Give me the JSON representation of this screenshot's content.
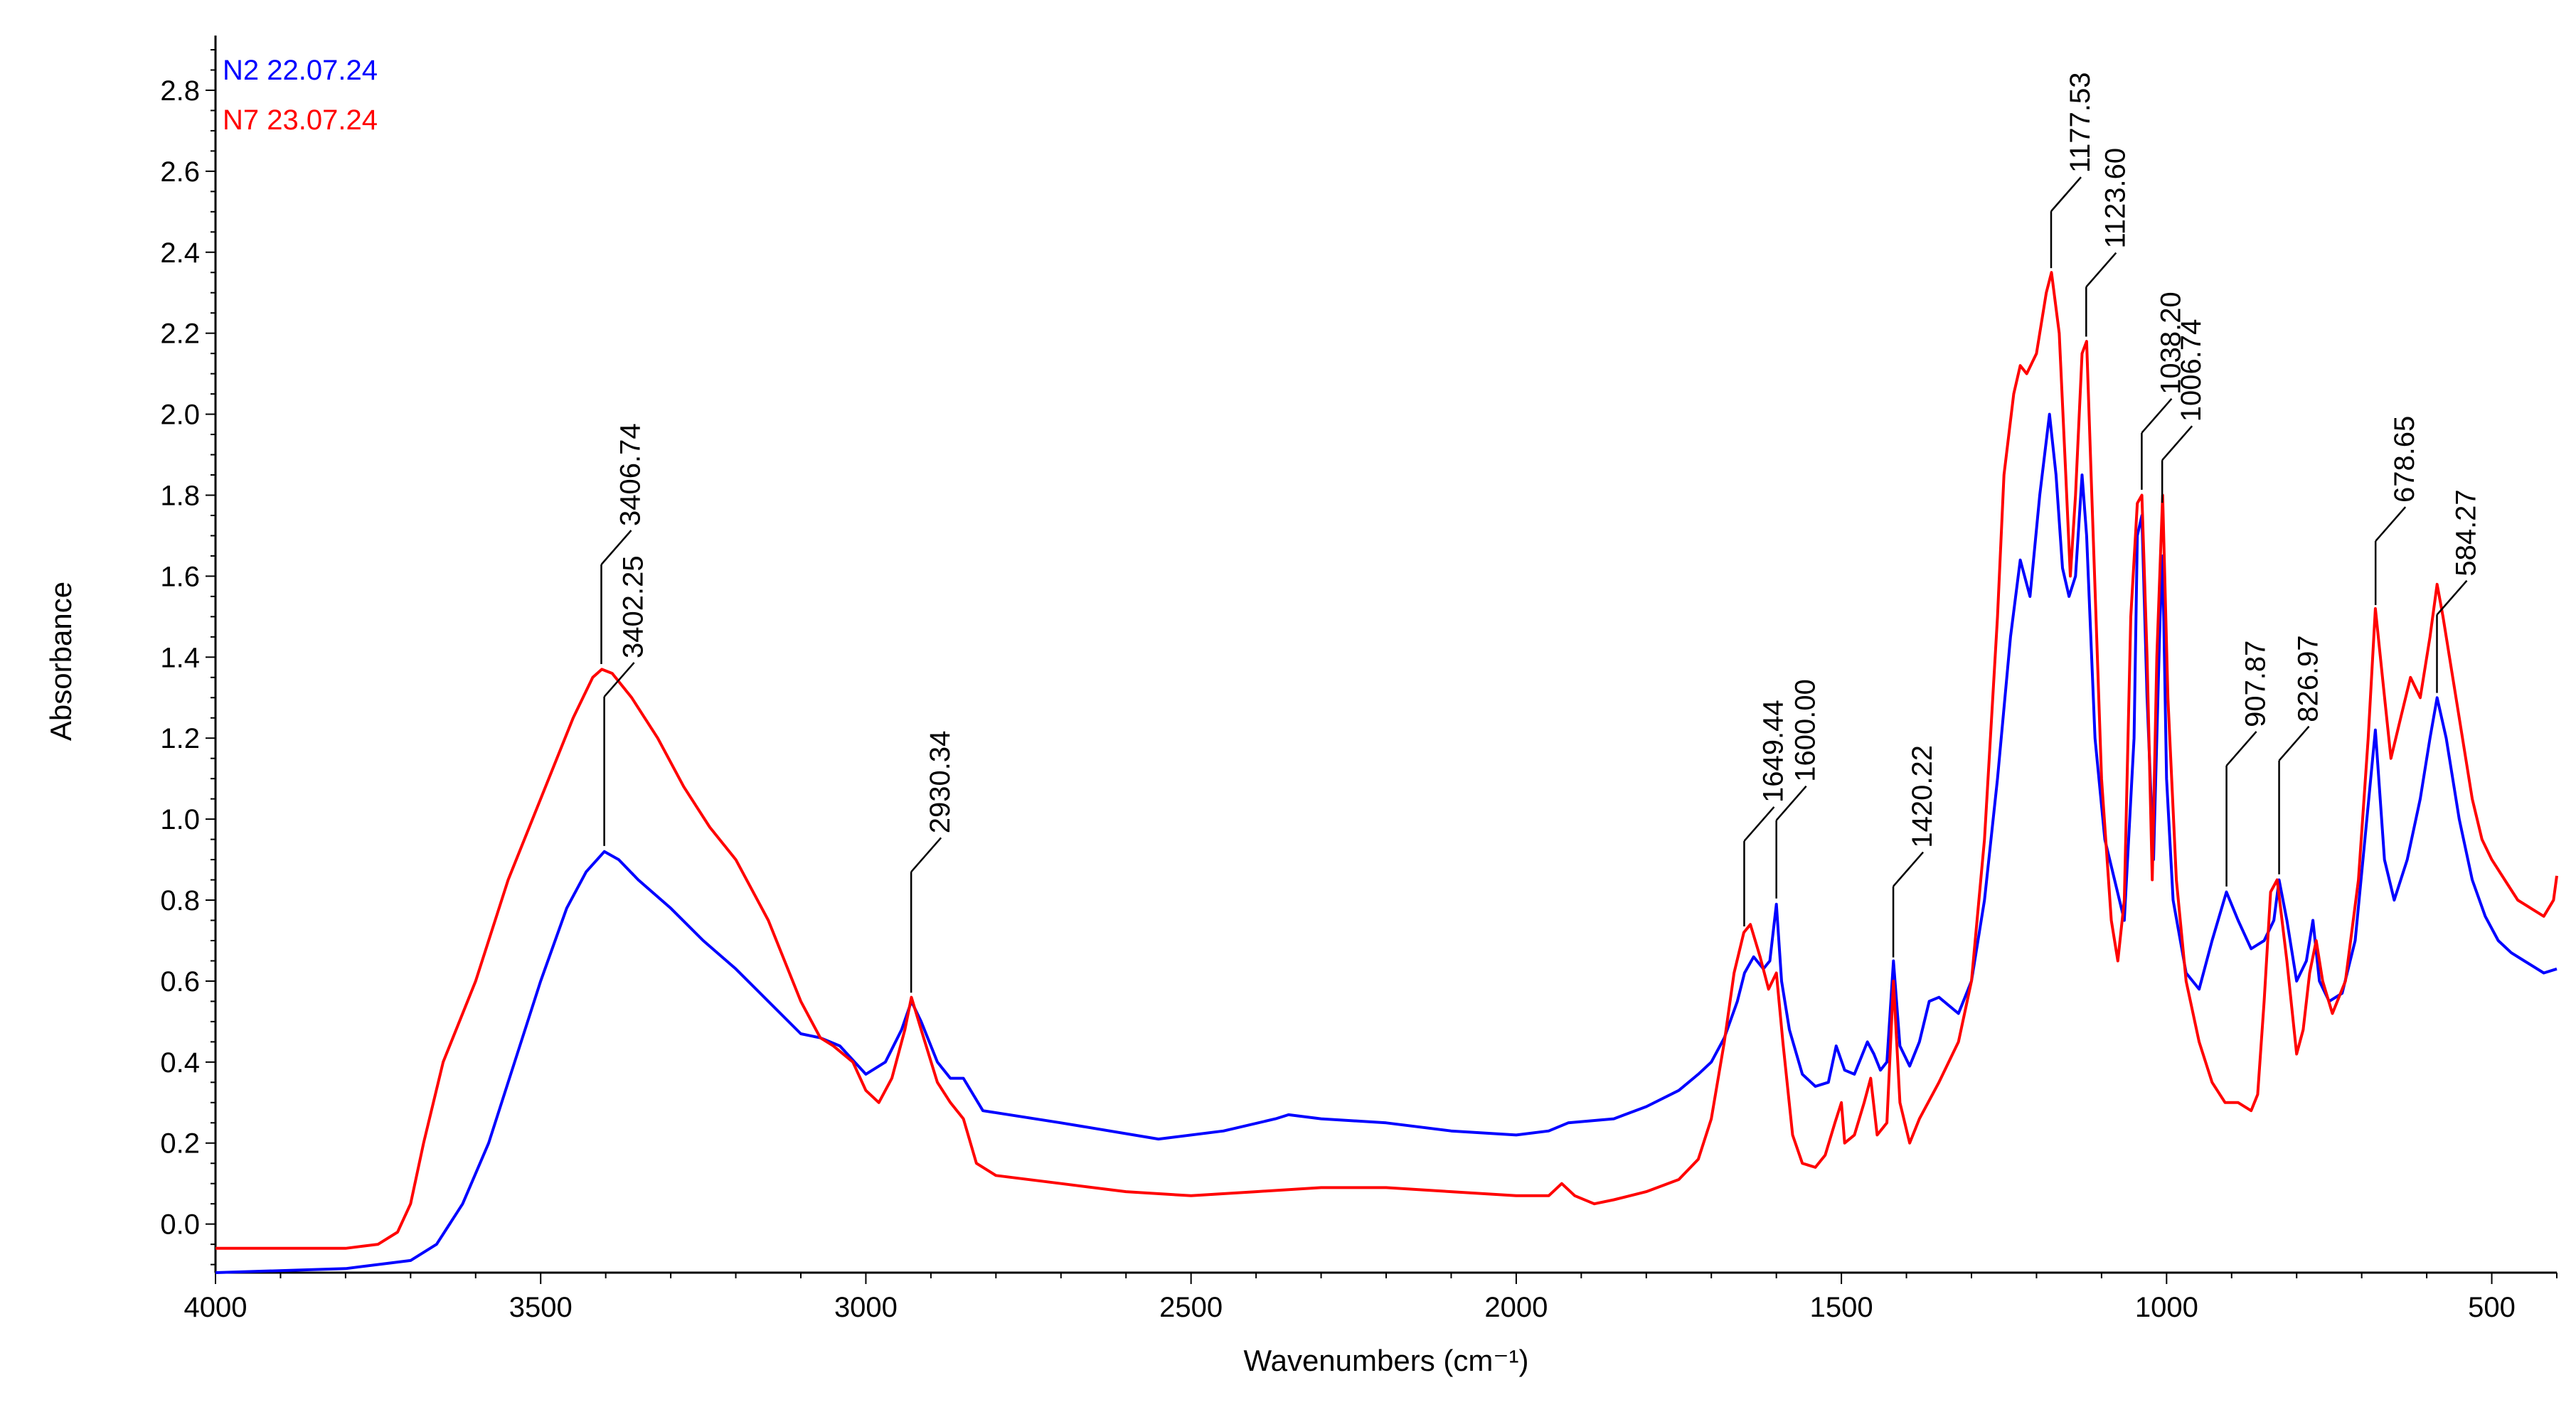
{
  "chart_data": {
    "type": "line",
    "title": "",
    "xlabel": "Wavenumbers (cm⁻¹)",
    "ylabel": "Absorbance",
    "xlim": [
      4000,
      400
    ],
    "ylim": [
      -0.12,
      2.9
    ],
    "x_ticks": [
      4000,
      3500,
      3000,
      2500,
      2000,
      1500,
      1000,
      500
    ],
    "x_tick_labels": [
      "4000",
      "3500",
      "3000",
      "2500",
      "2000",
      "1500",
      "1000",
      "500"
    ],
    "y_ticks": [
      0.0,
      0.2,
      0.4,
      0.6,
      0.8,
      1.0,
      1.2,
      1.4,
      1.6,
      1.8,
      2.0,
      2.2,
      2.4,
      2.6,
      2.8
    ],
    "y_tick_labels": [
      "0.0",
      "0.2",
      "0.4",
      "0.6",
      "0.8",
      "1.0",
      "1.2",
      "1.4",
      "1.6",
      "1.8",
      "2.0",
      "2.2",
      "2.4",
      "2.6",
      "2.8"
    ],
    "grid": false,
    "legend_position": "top-left",
    "series": [
      {
        "name": "N2 22.07.24",
        "color": "#0000ff",
        "points": [
          [
            4000,
            -0.12
          ],
          [
            3800,
            -0.11
          ],
          [
            3700,
            -0.09
          ],
          [
            3660,
            -0.05
          ],
          [
            3620,
            0.05
          ],
          [
            3580,
            0.2
          ],
          [
            3540,
            0.4
          ],
          [
            3500,
            0.6
          ],
          [
            3460,
            0.78
          ],
          [
            3430,
            0.87
          ],
          [
            3402,
            0.92
          ],
          [
            3380,
            0.9
          ],
          [
            3350,
            0.85
          ],
          [
            3300,
            0.78
          ],
          [
            3250,
            0.7
          ],
          [
            3200,
            0.63
          ],
          [
            3150,
            0.55
          ],
          [
            3100,
            0.47
          ],
          [
            3070,
            0.46
          ],
          [
            3040,
            0.44
          ],
          [
            3000,
            0.37
          ],
          [
            2970,
            0.4
          ],
          [
            2945,
            0.48
          ],
          [
            2930,
            0.55
          ],
          [
            2915,
            0.5
          ],
          [
            2890,
            0.4
          ],
          [
            2870,
            0.36
          ],
          [
            2850,
            0.36
          ],
          [
            2820,
            0.28
          ],
          [
            2700,
            0.25
          ],
          [
            2550,
            0.21
          ],
          [
            2450,
            0.23
          ],
          [
            2370,
            0.26
          ],
          [
            2350,
            0.27
          ],
          [
            2300,
            0.26
          ],
          [
            2200,
            0.25
          ],
          [
            2100,
            0.23
          ],
          [
            2000,
            0.22
          ],
          [
            1950,
            0.23
          ],
          [
            1920,
            0.25
          ],
          [
            1850,
            0.26
          ],
          [
            1800,
            0.29
          ],
          [
            1750,
            0.33
          ],
          [
            1720,
            0.37
          ],
          [
            1700,
            0.4
          ],
          [
            1680,
            0.46
          ],
          [
            1660,
            0.55
          ],
          [
            1649,
            0.62
          ],
          [
            1635,
            0.66
          ],
          [
            1620,
            0.63
          ],
          [
            1610,
            0.65
          ],
          [
            1600,
            0.79
          ],
          [
            1592,
            0.6
          ],
          [
            1580,
            0.48
          ],
          [
            1560,
            0.37
          ],
          [
            1540,
            0.34
          ],
          [
            1520,
            0.35
          ],
          [
            1508,
            0.44
          ],
          [
            1495,
            0.38
          ],
          [
            1480,
            0.37
          ],
          [
            1460,
            0.45
          ],
          [
            1450,
            0.42
          ],
          [
            1440,
            0.38
          ],
          [
            1430,
            0.4
          ],
          [
            1420,
            0.65
          ],
          [
            1410,
            0.44
          ],
          [
            1395,
            0.39
          ],
          [
            1380,
            0.45
          ],
          [
            1365,
            0.55
          ],
          [
            1350,
            0.56
          ],
          [
            1320,
            0.52
          ],
          [
            1300,
            0.6
          ],
          [
            1280,
            0.8
          ],
          [
            1260,
            1.1
          ],
          [
            1240,
            1.45
          ],
          [
            1225,
            1.64
          ],
          [
            1210,
            1.55
          ],
          [
            1195,
            1.8
          ],
          [
            1180,
            2.0
          ],
          [
            1170,
            1.85
          ],
          [
            1160,
            1.62
          ],
          [
            1150,
            1.55
          ],
          [
            1140,
            1.6
          ],
          [
            1130,
            1.85
          ],
          [
            1123,
            1.7
          ],
          [
            1110,
            1.2
          ],
          [
            1095,
            0.95
          ],
          [
            1080,
            0.85
          ],
          [
            1065,
            0.75
          ],
          [
            1050,
            1.2
          ],
          [
            1045,
            1.7
          ],
          [
            1038,
            1.75
          ],
          [
            1030,
            1.3
          ],
          [
            1020,
            0.9
          ],
          [
            1010,
            1.5
          ],
          [
            1006,
            1.65
          ],
          [
            1000,
            1.1
          ],
          [
            990,
            0.8
          ],
          [
            970,
            0.62
          ],
          [
            950,
            0.58
          ],
          [
            930,
            0.7
          ],
          [
            908,
            0.82
          ],
          [
            890,
            0.75
          ],
          [
            870,
            0.68
          ],
          [
            850,
            0.7
          ],
          [
            835,
            0.75
          ],
          [
            827,
            0.85
          ],
          [
            815,
            0.75
          ],
          [
            800,
            0.6
          ],
          [
            785,
            0.65
          ],
          [
            775,
            0.75
          ],
          [
            765,
            0.6
          ],
          [
            750,
            0.55
          ],
          [
            730,
            0.57
          ],
          [
            710,
            0.7
          ],
          [
            695,
            0.95
          ],
          [
            679,
            1.22
          ],
          [
            665,
            0.9
          ],
          [
            650,
            0.8
          ],
          [
            630,
            0.9
          ],
          [
            610,
            1.05
          ],
          [
            595,
            1.2
          ],
          [
            584,
            1.3
          ],
          [
            570,
            1.2
          ],
          [
            550,
            1.0
          ],
          [
            530,
            0.85
          ],
          [
            510,
            0.76
          ],
          [
            490,
            0.7
          ],
          [
            470,
            0.67
          ],
          [
            450,
            0.65
          ],
          [
            420,
            0.62
          ],
          [
            400,
            0.63
          ]
        ]
      },
      {
        "name": "N7 23.07.24",
        "color": "#ff0000",
        "points": [
          [
            4000,
            -0.06
          ],
          [
            3800,
            -0.06
          ],
          [
            3750,
            -0.05
          ],
          [
            3720,
            -0.02
          ],
          [
            3700,
            0.05
          ],
          [
            3680,
            0.2
          ],
          [
            3650,
            0.4
          ],
          [
            3600,
            0.6
          ],
          [
            3550,
            0.85
          ],
          [
            3500,
            1.05
          ],
          [
            3450,
            1.25
          ],
          [
            3420,
            1.35
          ],
          [
            3406,
            1.37
          ],
          [
            3390,
            1.36
          ],
          [
            3360,
            1.3
          ],
          [
            3320,
            1.2
          ],
          [
            3280,
            1.08
          ],
          [
            3240,
            0.98
          ],
          [
            3200,
            0.9
          ],
          [
            3150,
            0.75
          ],
          [
            3100,
            0.55
          ],
          [
            3070,
            0.46
          ],
          [
            3050,
            0.44
          ],
          [
            3020,
            0.4
          ],
          [
            3000,
            0.33
          ],
          [
            2980,
            0.3
          ],
          [
            2960,
            0.36
          ],
          [
            2940,
            0.48
          ],
          [
            2930,
            0.56
          ],
          [
            2915,
            0.48
          ],
          [
            2890,
            0.35
          ],
          [
            2870,
            0.3
          ],
          [
            2850,
            0.26
          ],
          [
            2830,
            0.15
          ],
          [
            2800,
            0.12
          ],
          [
            2700,
            0.1
          ],
          [
            2600,
            0.08
          ],
          [
            2500,
            0.07
          ],
          [
            2400,
            0.08
          ],
          [
            2300,
            0.09
          ],
          [
            2200,
            0.09
          ],
          [
            2100,
            0.08
          ],
          [
            2000,
            0.07
          ],
          [
            1950,
            0.07
          ],
          [
            1930,
            0.1
          ],
          [
            1910,
            0.07
          ],
          [
            1880,
            0.05
          ],
          [
            1850,
            0.06
          ],
          [
            1800,
            0.08
          ],
          [
            1750,
            0.11
          ],
          [
            1720,
            0.16
          ],
          [
            1700,
            0.26
          ],
          [
            1680,
            0.45
          ],
          [
            1665,
            0.62
          ],
          [
            1650,
            0.72
          ],
          [
            1640,
            0.74
          ],
          [
            1625,
            0.66
          ],
          [
            1612,
            0.58
          ],
          [
            1600,
            0.62
          ],
          [
            1590,
            0.45
          ],
          [
            1575,
            0.22
          ],
          [
            1560,
            0.15
          ],
          [
            1540,
            0.14
          ],
          [
            1525,
            0.17
          ],
          [
            1510,
            0.25
          ],
          [
            1500,
            0.3
          ],
          [
            1495,
            0.2
          ],
          [
            1480,
            0.22
          ],
          [
            1465,
            0.3
          ],
          [
            1455,
            0.36
          ],
          [
            1445,
            0.22
          ],
          [
            1430,
            0.25
          ],
          [
            1420,
            0.6
          ],
          [
            1410,
            0.3
          ],
          [
            1395,
            0.2
          ],
          [
            1380,
            0.26
          ],
          [
            1350,
            0.35
          ],
          [
            1320,
            0.45
          ],
          [
            1300,
            0.6
          ],
          [
            1280,
            0.95
          ],
          [
            1260,
            1.5
          ],
          [
            1250,
            1.85
          ],
          [
            1235,
            2.05
          ],
          [
            1225,
            2.12
          ],
          [
            1215,
            2.1
          ],
          [
            1200,
            2.15
          ],
          [
            1185,
            2.3
          ],
          [
            1177,
            2.35
          ],
          [
            1165,
            2.2
          ],
          [
            1155,
            1.85
          ],
          [
            1148,
            1.6
          ],
          [
            1140,
            1.8
          ],
          [
            1130,
            2.15
          ],
          [
            1123,
            2.18
          ],
          [
            1115,
            1.8
          ],
          [
            1100,
            1.1
          ],
          [
            1085,
            0.75
          ],
          [
            1075,
            0.65
          ],
          [
            1065,
            0.8
          ],
          [
            1055,
            1.5
          ],
          [
            1045,
            1.78
          ],
          [
            1038,
            1.8
          ],
          [
            1030,
            1.4
          ],
          [
            1022,
            0.85
          ],
          [
            1015,
            1.4
          ],
          [
            1006,
            1.8
          ],
          [
            998,
            1.3
          ],
          [
            985,
            0.85
          ],
          [
            970,
            0.6
          ],
          [
            950,
            0.45
          ],
          [
            930,
            0.35
          ],
          [
            910,
            0.3
          ],
          [
            890,
            0.3
          ],
          [
            870,
            0.28
          ],
          [
            860,
            0.32
          ],
          [
            850,
            0.55
          ],
          [
            840,
            0.82
          ],
          [
            830,
            0.85
          ],
          [
            815,
            0.65
          ],
          [
            800,
            0.42
          ],
          [
            790,
            0.48
          ],
          [
            780,
            0.62
          ],
          [
            770,
            0.7
          ],
          [
            760,
            0.6
          ],
          [
            745,
            0.52
          ],
          [
            725,
            0.6
          ],
          [
            705,
            0.85
          ],
          [
            690,
            1.2
          ],
          [
            679,
            1.52
          ],
          [
            668,
            1.35
          ],
          [
            655,
            1.15
          ],
          [
            640,
            1.25
          ],
          [
            625,
            1.35
          ],
          [
            610,
            1.3
          ],
          [
            595,
            1.45
          ],
          [
            584,
            1.58
          ],
          [
            575,
            1.5
          ],
          [
            560,
            1.35
          ],
          [
            545,
            1.2
          ],
          [
            530,
            1.05
          ],
          [
            515,
            0.95
          ],
          [
            500,
            0.9
          ],
          [
            480,
            0.85
          ],
          [
            460,
            0.8
          ],
          [
            440,
            0.78
          ],
          [
            420,
            0.76
          ],
          [
            405,
            0.8
          ],
          [
            400,
            0.86
          ]
        ]
      }
    ],
    "annotations": [
      {
        "label": "3406.74",
        "x": 3406.74,
        "series": "N7 23.07.24"
      },
      {
        "label": "3402.25",
        "x": 3402.25,
        "series": "N2 22.07.24"
      },
      {
        "label": "2930.34",
        "x": 2930.34,
        "series": "N7 23.07.24"
      },
      {
        "label": "1649.44",
        "x": 1649.44,
        "series": "N7 23.07.24"
      },
      {
        "label": "1600.00",
        "x": 1600.0,
        "series": "N2 22.07.24"
      },
      {
        "label": "1420.22",
        "x": 1420.22,
        "series": "N2 22.07.24"
      },
      {
        "label": "1177.53",
        "x": 1177.53,
        "series": "N7 23.07.24"
      },
      {
        "label": "1123.60",
        "x": 1123.6,
        "series": "N7 23.07.24"
      },
      {
        "label": "1038.20",
        "x": 1038.2,
        "series": "N7 23.07.24"
      },
      {
        "label": "1006.74",
        "x": 1006.74,
        "series": "N7 23.07.24"
      },
      {
        "label": "907.87",
        "x": 907.87,
        "series": "N2 22.07.24"
      },
      {
        "label": "826.97",
        "x": 826.97,
        "series": "N2 22.07.24"
      },
      {
        "label": "678.65",
        "x": 678.65,
        "series": "N7 23.07.24"
      },
      {
        "label": "584.27",
        "x": 584.27,
        "series": "N2 22.07.24"
      }
    ]
  }
}
